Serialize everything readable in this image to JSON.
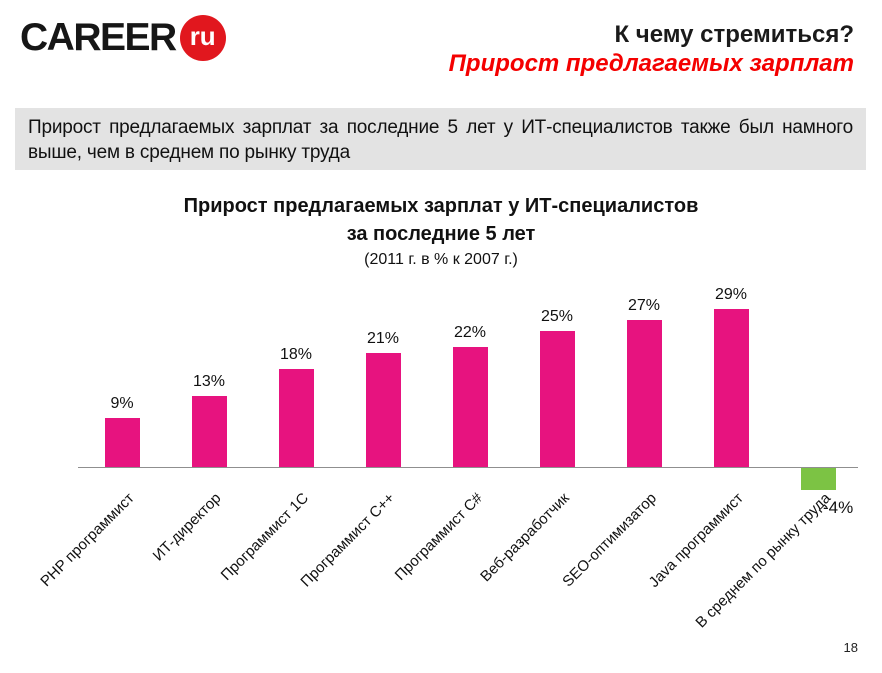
{
  "slide": {
    "page_number": "18"
  },
  "logo": {
    "brand": "CAREER",
    "suffix": "ru",
    "badge_color": "#e1171e"
  },
  "header": {
    "title_line1": "К чему стремиться?",
    "title_line2": "Прирост предлагаемых зарплат",
    "title_line2_color": "#f40000"
  },
  "callout": {
    "line1": "Прирост предлагаемых зарплат за последние 5 лет у ИТ-специалистов также был намного",
    "line2": "выше, чем в среднем по рынку труда",
    "background": "#e3e3e3"
  },
  "chart_data": {
    "type": "bar",
    "title_line1": "Прирост предлагаемых зарплат у ИТ-специалистов",
    "title_line2": "за последние 5 лет",
    "subtitle": "(2011 г. в % к 2007 г.)",
    "categories": [
      "PHP программист",
      "ИТ-директор",
      "Программист 1С",
      "Программист C++",
      "Программист C#",
      "Веб-разработчик",
      "SEO-оптимизатор",
      "Java программист",
      "В среднем по рынку труда"
    ],
    "values": [
      9,
      13,
      18,
      21,
      22,
      25,
      27,
      29,
      -4
    ],
    "value_labels": [
      "9%",
      "13%",
      "18%",
      "21%",
      "22%",
      "25%",
      "27%",
      "29%",
      "-4%"
    ],
    "bar_color": "#e7137f",
    "negative_bar_color": "#7cc344",
    "axis_color": "#8f8f8f",
    "ylim": [
      -6,
      32
    ],
    "grid": false,
    "legend": false,
    "xlabel": "",
    "ylabel": ""
  }
}
